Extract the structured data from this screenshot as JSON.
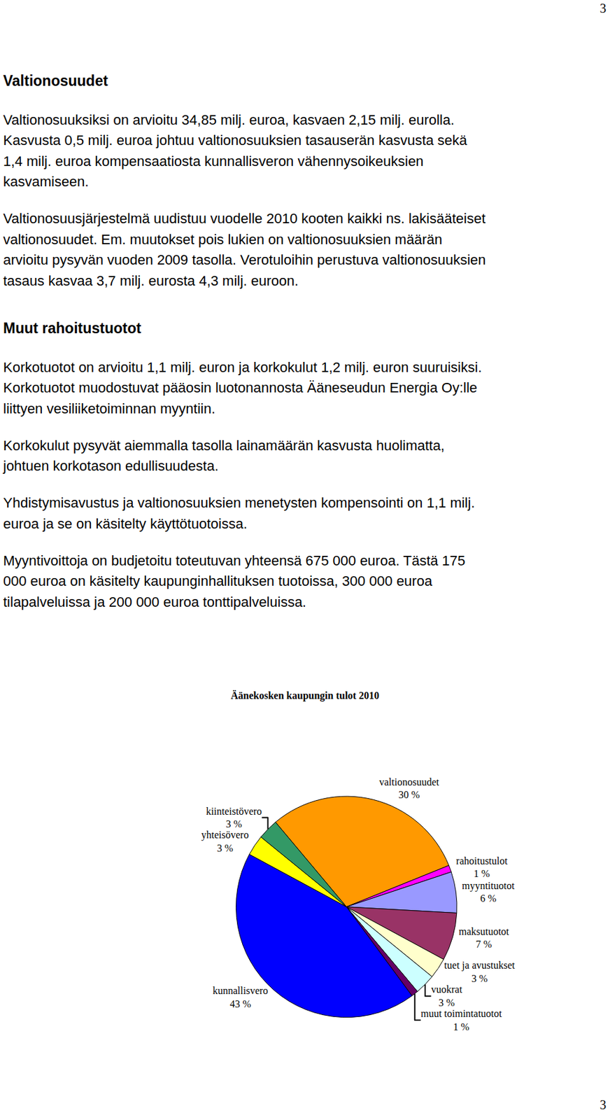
{
  "page_number_top": "3",
  "sections": [
    {
      "heading": "Valtionosuudet",
      "paragraphs": [
        [
          "Valtionosuuksiksi on arvioitu 34,85 milj. euroa, kasvaen 2,15 milj. eurolla.",
          "Kasvusta 0,5 milj. euroa johtuu valtionosuuksien tasauserän kasvusta sekä",
          "1,4 milj. euroa kompensaatiosta kunnallisveron vähennysoikeuksien",
          "kasvamiseen."
        ],
        [
          "Valtionosuusjärjestelmä uudistuu vuodelle 2010 kooten kaikki ns. lakisääteiset",
          "valtionosuudet. Em. muutokset pois lukien on valtionosuuksien määrän",
          "arvioitu pysyvän vuoden 2009 tasolla. Verotuloihin perustuva valtionosuuksien",
          "tasaus kasvaa 3,7 milj. eurosta 4,3 milj. euroon."
        ]
      ]
    },
    {
      "heading": "Muut rahoitustuotot",
      "paragraphs": [
        [
          "Korkotuotot on arvioitu 1,1 milj. euron ja korkokulut 1,2 milj. euron suuruisiksi.",
          "Korkotuotot muodostuvat pääosin luotonannosta Ääneseudun Energia Oy:lle",
          "liittyen vesiliiketoiminnan myyntiin."
        ],
        [
          "Korkokulut pysyvät aiemmalla tasolla lainamäärän kasvusta huolimatta,",
          "johtuen korkotason edullisuudesta."
        ],
        [
          "Yhdistymisavustus ja valtionosuuksien menetysten kompensointi on 1,1 milj.",
          "euroa ja se on käsitelty käyttötuotoissa."
        ],
        [
          "Myyntivoittoja on budjetoitu toteutuvan yhteensä 675 000 euroa. Tästä 175",
          "000 euroa on käsitelty kaupunginhallituksen tuotoissa, 300 000 euroa",
          "tilapalveluissa ja 200 000 euroa tonttipalveluissa."
        ]
      ]
    }
  ],
  "chart_data": {
    "type": "pie",
    "title": "Äänekosken kaupungin tulot 2010",
    "categories": [
      "valtionosuudet",
      "rahoitustulot",
      "myyntituotot",
      "maksutuotot",
      "tuet ja avustukset",
      "vuokrat",
      "muut toimintatuotot",
      "kunnallisvero",
      "yhteisövero",
      "kiinteistövero"
    ],
    "values": [
      30,
      1,
      6,
      7,
      3,
      3,
      1,
      43,
      3,
      3
    ],
    "value_labels": [
      "30 %",
      "1 %",
      "6 %",
      "7 %",
      "3 %",
      "3 %",
      "1 %",
      "43 %",
      "3 %",
      "3 %"
    ],
    "colors": [
      "#ff9900",
      "#ff00ff",
      "#9999ff",
      "#993366",
      "#ffffcc",
      "#ccffff",
      "#660066",
      "#0000ff",
      "#ffff00",
      "#339966"
    ],
    "data_labels": true,
    "legend": "none"
  },
  "page_number_bottom": "3"
}
